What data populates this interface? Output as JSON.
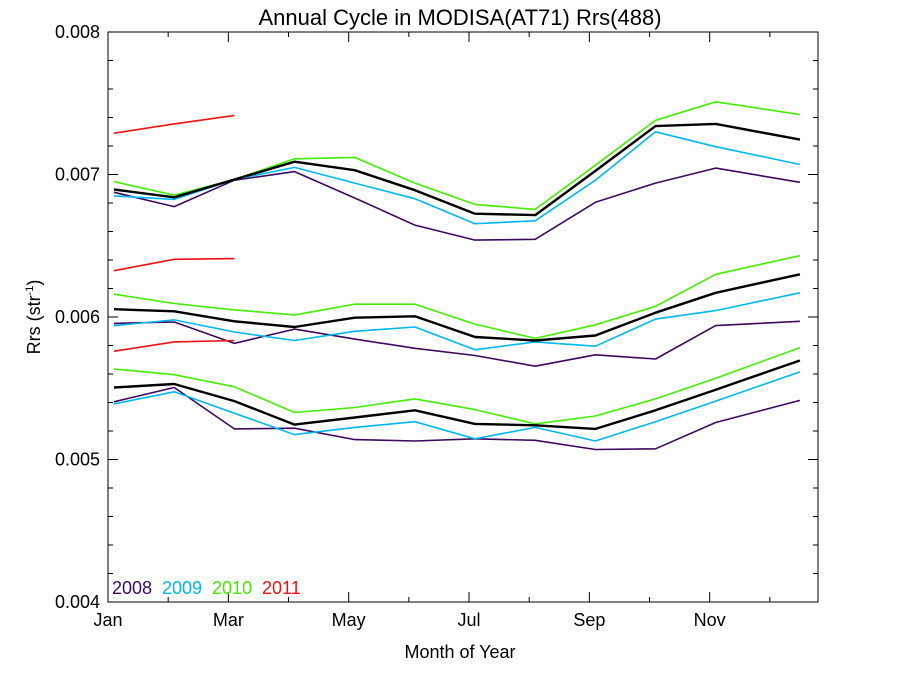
{
  "chart_data": {
    "type": "line",
    "title": "Annual Cycle in MODISA(AT71) Rrs(488)",
    "xlabel": "Month of Year",
    "ylabel": "Rrs (str",
    "ylabel_sup": "-1",
    "ylabel_close": ")",
    "xlim": [
      1,
      12.8
    ],
    "ylim": [
      0.004,
      0.008
    ],
    "x_ticks": [
      {
        "x": 1,
        "label": "Jan"
      },
      {
        "x": 3,
        "label": "Mar"
      },
      {
        "x": 5,
        "label": "May"
      },
      {
        "x": 7,
        "label": "Jul"
      },
      {
        "x": 9,
        "label": "Sep"
      },
      {
        "x": 11,
        "label": "Nov"
      }
    ],
    "y_ticks": [
      {
        "y": 0.004,
        "label": "0.004"
      },
      {
        "y": 0.005,
        "label": "0.005"
      },
      {
        "y": 0.006,
        "label": "0.006"
      },
      {
        "y": 0.007,
        "label": "0.007"
      },
      {
        "y": 0.008,
        "label": "0.008"
      }
    ],
    "legend": [
      {
        "label": "2008",
        "color": "#3d0a5e"
      },
      {
        "label": "2009",
        "color": "#00b7f0"
      },
      {
        "label": "2010",
        "color": "#44ee00"
      },
      {
        "label": "2011",
        "color": "#ee1111"
      }
    ],
    "legend_placement": "bottom-left",
    "series": [
      {
        "color": "#3d0a5e",
        "width": 1.6,
        "x": [
          1.1,
          2.1,
          3.1,
          4.1,
          5.1,
          6.1,
          7.1,
          8.1,
          9.1,
          10.1,
          11.1,
          12.5
        ],
        "values": [
          0.006875,
          0.006775,
          0.00696,
          0.00702,
          0.006835,
          0.006645,
          0.00654,
          0.006545,
          0.006805,
          0.00694,
          0.007045,
          0.006945
        ]
      },
      {
        "color": "#00b7f0",
        "width": 1.6,
        "x": [
          1.1,
          2.1,
          3.1,
          4.1,
          5.1,
          6.1,
          7.1,
          8.1,
          9.1,
          10.1,
          11.1,
          12.5
        ],
        "values": [
          0.00685,
          0.006825,
          0.006965,
          0.00705,
          0.00694,
          0.00683,
          0.006655,
          0.006675,
          0.00696,
          0.0073,
          0.007195,
          0.00707
        ]
      },
      {
        "color": "#44ee00",
        "width": 1.6,
        "x": [
          1.1,
          2.1,
          3.1,
          4.1,
          5.1,
          6.1,
          7.1,
          8.1,
          9.1,
          10.1,
          11.1,
          12.5
        ],
        "values": [
          0.00695,
          0.006855,
          0.006965,
          0.00711,
          0.00712,
          0.00694,
          0.00679,
          0.006755,
          0.007065,
          0.00738,
          0.00751,
          0.00742
        ]
      },
      {
        "color": "#000000",
        "width": 2.4,
        "x": [
          1.1,
          2.1,
          3.1,
          4.1,
          5.1,
          6.1,
          7.1,
          8.1,
          9.1,
          10.1,
          11.1,
          12.5
        ],
        "values": [
          0.006895,
          0.00684,
          0.006965,
          0.00709,
          0.00703,
          0.00689,
          0.006725,
          0.006715,
          0.007025,
          0.00734,
          0.007355,
          0.007245
        ]
      },
      {
        "color": "#ee1111",
        "width": 1.6,
        "x": [
          1.1,
          2.1,
          3.1
        ],
        "values": [
          0.00729,
          0.007355,
          0.007415
        ]
      },
      {
        "color": "#3d0a5e",
        "width": 1.6,
        "x": [
          1.1,
          2.1,
          3.1,
          4.1,
          5.1,
          6.1,
          7.1,
          8.1,
          9.1,
          10.1,
          11.1,
          12.5
        ],
        "values": [
          0.005955,
          0.005965,
          0.005815,
          0.005915,
          0.005845,
          0.00578,
          0.00573,
          0.005655,
          0.005735,
          0.005705,
          0.00594,
          0.00597
        ]
      },
      {
        "color": "#00b7f0",
        "width": 1.6,
        "x": [
          1.1,
          2.1,
          3.1,
          4.1,
          5.1,
          6.1,
          7.1,
          8.1,
          9.1,
          10.1,
          11.1,
          12.5
        ],
        "values": [
          0.00594,
          0.00598,
          0.005895,
          0.005835,
          0.0059,
          0.00593,
          0.00577,
          0.005825,
          0.005795,
          0.005985,
          0.006045,
          0.00617
        ]
      },
      {
        "color": "#44ee00",
        "width": 1.6,
        "x": [
          1.1,
          2.1,
          3.1,
          4.1,
          5.1,
          6.1,
          7.1,
          8.1,
          9.1,
          10.1,
          11.1,
          12.5
        ],
        "values": [
          0.00616,
          0.006095,
          0.00605,
          0.006015,
          0.00609,
          0.00609,
          0.00595,
          0.00585,
          0.005945,
          0.006075,
          0.0063,
          0.00643
        ]
      },
      {
        "color": "#000000",
        "width": 2.4,
        "x": [
          1.1,
          2.1,
          3.1,
          4.1,
          5.1,
          6.1,
          7.1,
          8.1,
          9.1,
          10.1,
          11.1,
          12.5
        ],
        "values": [
          0.006055,
          0.00604,
          0.00597,
          0.00593,
          0.005995,
          0.006005,
          0.00586,
          0.005835,
          0.00587,
          0.00603,
          0.00617,
          0.0063
        ]
      },
      {
        "color": "#ee1111",
        "width": 1.6,
        "x": [
          1.1,
          2.1,
          3.1
        ],
        "values": [
          0.006325,
          0.006405,
          0.00641
        ]
      },
      {
        "color": "#ee1111",
        "width": 1.6,
        "x": [
          1.1,
          2.1,
          3.1
        ],
        "values": [
          0.00576,
          0.005825,
          0.005835
        ]
      },
      {
        "color": "#3d0a5e",
        "width": 1.6,
        "x": [
          1.1,
          2.1,
          3.1,
          4.1,
          5.1,
          6.1,
          7.1,
          8.1,
          9.1,
          10.1,
          11.1,
          12.5
        ],
        "values": [
          0.005405,
          0.005505,
          0.005215,
          0.00522,
          0.00514,
          0.00513,
          0.005145,
          0.005135,
          0.00507,
          0.005075,
          0.00526,
          0.005415
        ]
      },
      {
        "color": "#00b7f0",
        "width": 1.6,
        "x": [
          1.1,
          2.1,
          3.1,
          4.1,
          5.1,
          6.1,
          7.1,
          8.1,
          9.1,
          10.1,
          11.1,
          12.5
        ],
        "values": [
          0.00539,
          0.005475,
          0.005325,
          0.005175,
          0.005225,
          0.005265,
          0.005145,
          0.005225,
          0.00513,
          0.005265,
          0.00541,
          0.005615
        ]
      },
      {
        "color": "#44ee00",
        "width": 1.6,
        "x": [
          1.1,
          2.1,
          3.1,
          4.1,
          5.1,
          6.1,
          7.1,
          8.1,
          9.1,
          10.1,
          11.1,
          12.5
        ],
        "values": [
          0.005635,
          0.005595,
          0.00551,
          0.00533,
          0.005365,
          0.005425,
          0.00535,
          0.00525,
          0.005305,
          0.005425,
          0.00557,
          0.005785
        ]
      },
      {
        "color": "#000000",
        "width": 2.4,
        "x": [
          1.1,
          2.1,
          3.1,
          4.1,
          5.1,
          6.1,
          7.1,
          8.1,
          9.1,
          10.1,
          11.1,
          12.5
        ],
        "values": [
          0.005505,
          0.00553,
          0.00541,
          0.005245,
          0.005295,
          0.005345,
          0.00525,
          0.00524,
          0.005215,
          0.005345,
          0.00549,
          0.005695
        ]
      }
    ]
  }
}
